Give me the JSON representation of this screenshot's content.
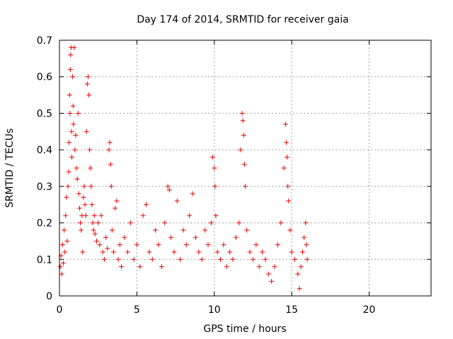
{
  "chart_data": {
    "type": "scatter",
    "title": "Day 174 of 2014, SRMTID for receiver gaia",
    "xlabel": "GPS time / hours",
    "ylabel": "SRMTID / TECUs",
    "xlim": [
      0,
      24
    ],
    "ylim": [
      0,
      0.7
    ],
    "xticks": [
      0,
      5,
      10,
      15,
      20
    ],
    "yticks": [
      0,
      0.1,
      0.2,
      0.3,
      0.4,
      0.5,
      0.6,
      0.7
    ],
    "grid": true,
    "marker": "+",
    "colors": {
      "series": "#ee0000",
      "grid": "#a0a0a0",
      "axis": "#000000"
    },
    "series": [
      {
        "name": "SRMTID",
        "points": [
          [
            0.05,
            0.08
          ],
          [
            0.1,
            0.11
          ],
          [
            0.15,
            0.06
          ],
          [
            0.2,
            0.14
          ],
          [
            0.25,
            0.09
          ],
          [
            0.3,
            0.18
          ],
          [
            0.35,
            0.12
          ],
          [
            0.4,
            0.22
          ],
          [
            0.45,
            0.27
          ],
          [
            0.5,
            0.15
          ],
          [
            0.55,
            0.3
          ],
          [
            0.6,
            0.34
          ],
          [
            0.62,
            0.42
          ],
          [
            0.65,
            0.55
          ],
          [
            0.68,
            0.5
          ],
          [
            0.7,
            0.62
          ],
          [
            0.72,
            0.66
          ],
          [
            0.75,
            0.68
          ],
          [
            0.78,
            0.45
          ],
          [
            0.8,
            0.38
          ],
          [
            0.85,
            0.6
          ],
          [
            0.88,
            0.52
          ],
          [
            0.9,
            0.47
          ],
          [
            0.95,
            0.68
          ],
          [
            1.0,
            0.4
          ],
          [
            1.05,
            0.44
          ],
          [
            1.1,
            0.35
          ],
          [
            1.15,
            0.32
          ],
          [
            1.2,
            0.5
          ],
          [
            1.25,
            0.28
          ],
          [
            1.3,
            0.24
          ],
          [
            1.35,
            0.2
          ],
          [
            1.4,
            0.18
          ],
          [
            1.45,
            0.22
          ],
          [
            1.5,
            0.12
          ],
          [
            1.55,
            0.27
          ],
          [
            1.6,
            0.3
          ],
          [
            1.65,
            0.25
          ],
          [
            1.7,
            0.22
          ],
          [
            1.75,
            0.45
          ],
          [
            1.8,
            0.58
          ],
          [
            1.85,
            0.6
          ],
          [
            1.9,
            0.55
          ],
          [
            1.95,
            0.4
          ],
          [
            2.0,
            0.35
          ],
          [
            2.05,
            0.3
          ],
          [
            2.1,
            0.25
          ],
          [
            2.15,
            0.2
          ],
          [
            2.2,
            0.18
          ],
          [
            2.25,
            0.22
          ],
          [
            2.3,
            0.17
          ],
          [
            2.4,
            0.15
          ],
          [
            2.5,
            0.2
          ],
          [
            2.6,
            0.14
          ],
          [
            2.7,
            0.22
          ],
          [
            2.8,
            0.12
          ],
          [
            2.9,
            0.1
          ],
          [
            3.0,
            0.16
          ],
          [
            3.1,
            0.13
          ],
          [
            3.2,
            0.4
          ],
          [
            3.25,
            0.42
          ],
          [
            3.3,
            0.36
          ],
          [
            3.35,
            0.3
          ],
          [
            3.4,
            0.18
          ],
          [
            3.5,
            0.12
          ],
          [
            3.6,
            0.24
          ],
          [
            3.7,
            0.26
          ],
          [
            3.8,
            0.1
          ],
          [
            3.9,
            0.14
          ],
          [
            4.0,
            0.08
          ],
          [
            4.2,
            0.16
          ],
          [
            4.4,
            0.12
          ],
          [
            4.6,
            0.2
          ],
          [
            4.8,
            0.1
          ],
          [
            5.0,
            0.14
          ],
          [
            5.2,
            0.08
          ],
          [
            5.4,
            0.22
          ],
          [
            5.6,
            0.25
          ],
          [
            5.8,
            0.12
          ],
          [
            6.0,
            0.1
          ],
          [
            6.2,
            0.18
          ],
          [
            6.4,
            0.14
          ],
          [
            6.6,
            0.08
          ],
          [
            6.8,
            0.2
          ],
          [
            7.0,
            0.3
          ],
          [
            7.1,
            0.29
          ],
          [
            7.2,
            0.16
          ],
          [
            7.4,
            0.12
          ],
          [
            7.6,
            0.26
          ],
          [
            7.8,
            0.1
          ],
          [
            8.0,
            0.18
          ],
          [
            8.2,
            0.14
          ],
          [
            8.4,
            0.22
          ],
          [
            8.6,
            0.28
          ],
          [
            8.8,
            0.16
          ],
          [
            9.0,
            0.12
          ],
          [
            9.2,
            0.1
          ],
          [
            9.4,
            0.18
          ],
          [
            9.6,
            0.14
          ],
          [
            9.8,
            0.2
          ],
          [
            9.9,
            0.38
          ],
          [
            10.0,
            0.35
          ],
          [
            10.05,
            0.3
          ],
          [
            10.1,
            0.22
          ],
          [
            10.2,
            0.12
          ],
          [
            10.4,
            0.1
          ],
          [
            10.6,
            0.14
          ],
          [
            10.8,
            0.08
          ],
          [
            11.0,
            0.12
          ],
          [
            11.2,
            0.1
          ],
          [
            11.4,
            0.16
          ],
          [
            11.6,
            0.2
          ],
          [
            11.7,
            0.4
          ],
          [
            11.8,
            0.5
          ],
          [
            11.85,
            0.48
          ],
          [
            11.9,
            0.44
          ],
          [
            11.95,
            0.36
          ],
          [
            12.0,
            0.3
          ],
          [
            12.1,
            0.18
          ],
          [
            12.3,
            0.12
          ],
          [
            12.5,
            0.1
          ],
          [
            12.7,
            0.14
          ],
          [
            12.9,
            0.08
          ],
          [
            13.1,
            0.12
          ],
          [
            13.3,
            0.1
          ],
          [
            13.5,
            0.06
          ],
          [
            13.7,
            0.04
          ],
          [
            13.9,
            0.08
          ],
          [
            14.1,
            0.14
          ],
          [
            14.3,
            0.2
          ],
          [
            14.5,
            0.35
          ],
          [
            14.6,
            0.47
          ],
          [
            14.65,
            0.42
          ],
          [
            14.7,
            0.38
          ],
          [
            14.75,
            0.3
          ],
          [
            14.8,
            0.26
          ],
          [
            14.9,
            0.18
          ],
          [
            15.0,
            0.12
          ],
          [
            15.2,
            0.1
          ],
          [
            15.4,
            0.06
          ],
          [
            15.5,
            0.02
          ],
          [
            15.6,
            0.08
          ],
          [
            15.7,
            0.12
          ],
          [
            15.8,
            0.16
          ],
          [
            15.9,
            0.2
          ],
          [
            15.95,
            0.14
          ],
          [
            16.0,
            0.1
          ]
        ]
      }
    ]
  }
}
